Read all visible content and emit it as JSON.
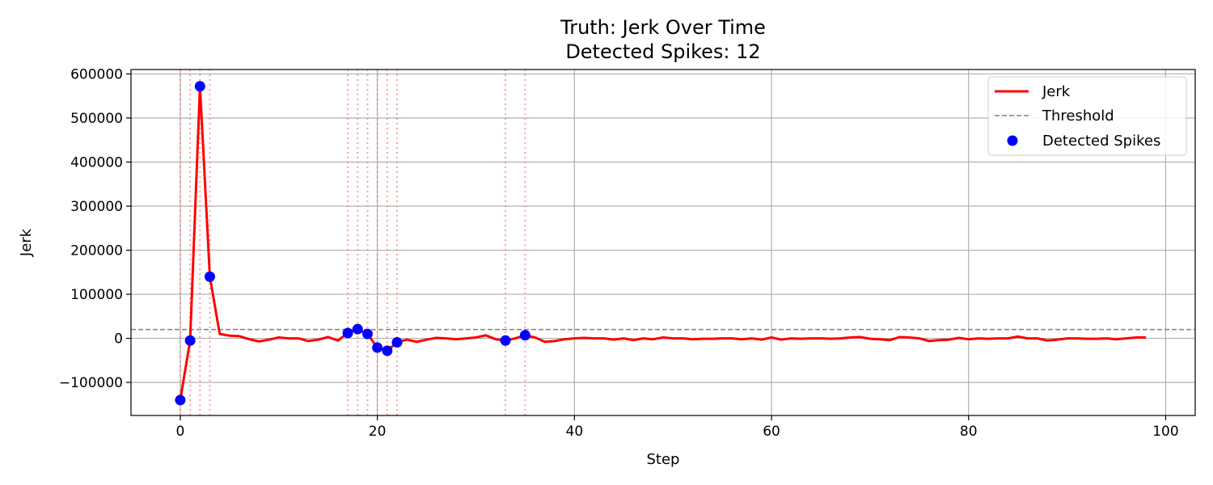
{
  "chart_data": {
    "type": "line",
    "title": "Truth: Jerk Over Time",
    "subtitle": "Detected Spikes: 12",
    "xlabel": "Step",
    "ylabel": "Jerk",
    "xlim": [
      -5,
      103
    ],
    "ylim": [
      -175000,
      610000
    ],
    "xticks": [
      0,
      20,
      40,
      60,
      80,
      100
    ],
    "yticks": [
      -100000,
      0,
      100000,
      200000,
      300000,
      400000,
      500000,
      600000
    ],
    "xtick_labels": [
      "0",
      "20",
      "40",
      "60",
      "80",
      "100"
    ],
    "ytick_labels": [
      "−100000",
      "0",
      "100000",
      "200000",
      "300000",
      "400000",
      "500000",
      "600000"
    ],
    "grid": true,
    "legend_position": "top-right",
    "threshold": 20000,
    "colors": {
      "jerk": "#ff0000",
      "threshold": "#808080",
      "spikes": "#0000ff",
      "spike_lines": "#ff8080",
      "grid": "#b0b0b0"
    },
    "series": [
      {
        "name": "Jerk",
        "x": [
          0,
          1,
          2,
          3,
          4,
          5,
          6,
          7,
          8,
          9,
          10,
          11,
          12,
          13,
          14,
          15,
          16,
          17,
          18,
          19,
          20,
          21,
          22,
          23,
          24,
          25,
          26,
          27,
          28,
          29,
          30,
          31,
          32,
          33,
          34,
          35,
          36,
          37,
          38,
          39,
          40,
          41,
          42,
          43,
          44,
          45,
          46,
          47,
          48,
          49,
          50,
          51,
          52,
          53,
          54,
          55,
          56,
          57,
          58,
          59,
          60,
          61,
          62,
          63,
          64,
          65,
          66,
          67,
          68,
          69,
          70,
          71,
          72,
          73,
          74,
          75,
          76,
          77,
          78,
          79,
          80,
          81,
          82,
          83,
          84,
          85,
          86,
          87,
          88,
          89,
          90,
          91,
          92,
          93,
          94,
          95,
          96,
          97,
          98
        ],
        "y": [
          -140000,
          -5000,
          572000,
          140000,
          10000,
          6000,
          5000,
          -2000,
          -7000,
          -3000,
          2000,
          0,
          0,
          -6000,
          -3000,
          3000,
          -5000,
          12000,
          21000,
          10000,
          -21000,
          -28000,
          -9000,
          -3000,
          -8000,
          -3000,
          1000,
          0,
          -2000,
          0,
          2000,
          7000,
          -2000,
          -5000,
          0,
          7000,
          2000,
          -8000,
          -6000,
          -2000,
          0,
          1000,
          0,
          0,
          -3000,
          0,
          -4000,
          0,
          -2000,
          2000,
          0,
          0,
          -2000,
          -1000,
          -1000,
          0,
          0,
          -2000,
          0,
          -3000,
          2000,
          -3000,
          0,
          -1000,
          0,
          0,
          -1000,
          0,
          2000,
          3000,
          -1000,
          -2000,
          -4000,
          3000,
          2000,
          0,
          -6000,
          -4000,
          -3000,
          1000,
          -2000,
          0,
          -1000,
          0,
          0,
          4000,
          0,
          0,
          -5000,
          -3000,
          0,
          0,
          -1000,
          -1000,
          0,
          -2000,
          0,
          2000,
          2000
        ]
      }
    ],
    "spikes": {
      "name": "Detected Spikes",
      "x": [
        0,
        1,
        2,
        3,
        17,
        18,
        19,
        20,
        21,
        22,
        33,
        35
      ],
      "y": [
        -140000,
        -5000,
        572000,
        140000,
        12000,
        21000,
        10000,
        -21000,
        -28000,
        -9000,
        -5000,
        7000
      ]
    },
    "legend": [
      "Jerk",
      "Threshold",
      "Detected Spikes"
    ]
  }
}
